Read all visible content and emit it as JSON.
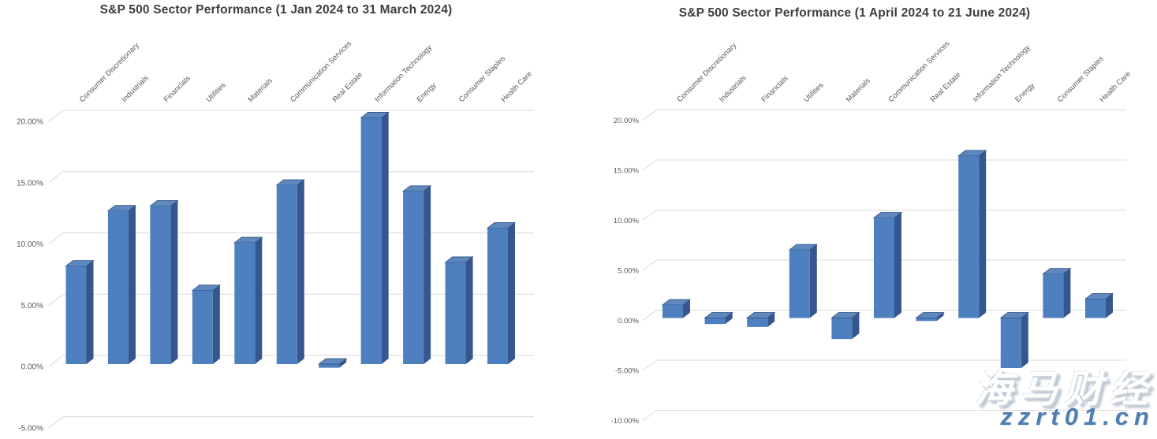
{
  "page": {
    "background": "#ffffff"
  },
  "colors": {
    "bar_front": "#4e7fbe",
    "bar_side": "#36568e",
    "bar_top": "#5e88be",
    "bar_top_edge": "#2f4f7e",
    "gridline": "#d9d9d9",
    "axis_text": "#595959",
    "title_text": "#3d3d3d"
  },
  "watermark": {
    "brand_text": "海马财经",
    "site_text": "zzrt01.cn",
    "brand_color": "#ffffff",
    "site_color": "#4e7eb0"
  },
  "chart_data": [
    {
      "type": "bar",
      "style": "3d-column",
      "title": "S&P 500 Sector Performance (1 Jan 2024 to 31 March 2024)",
      "categories": [
        "Consumer Discretionary",
        "Industrials",
        "Financials",
        "Utilities",
        "Materials",
        "Communication Services",
        "Real Estate",
        "Information Technology",
        "Energy",
        "Consumer Staples",
        "Health Care"
      ],
      "values": [
        8.0,
        12.5,
        12.9,
        6.0,
        9.9,
        14.6,
        -0.3,
        20.1,
        14.1,
        8.3,
        11.1
      ],
      "value_format": "percent",
      "xlabel": "",
      "ylabel": "",
      "ylim": [
        -5,
        20
      ],
      "ytick_values": [
        20,
        15,
        10,
        5,
        0,
        -5
      ],
      "ytick_labels": [
        "20.00%",
        "15.00%",
        "10.00%",
        "5.00%",
        "0.00%",
        "-5.00%"
      ],
      "grid": true,
      "legend": null
    },
    {
      "type": "bar",
      "style": "3d-column",
      "title": "S&P 500 Sector Performance (1 April 2024 to 21 June 2024)",
      "categories": [
        "Consumer Discretionary",
        "Industrials",
        "Financials",
        "Utilities",
        "Materials",
        "Communication Services",
        "Real Estate",
        "Information Technology",
        "Energy",
        "Consumer Staples",
        "Health Care"
      ],
      "values": [
        1.3,
        -0.6,
        -0.9,
        6.8,
        -2.1,
        10.0,
        -0.3,
        16.2,
        -5.0,
        4.4,
        1.9
      ],
      "value_format": "percent",
      "xlabel": "",
      "ylabel": "",
      "ylim": [
        -10,
        20
      ],
      "ytick_values": [
        20,
        15,
        10,
        5,
        0,
        -5,
        -10
      ],
      "ytick_labels": [
        "20.00%",
        "15.00%",
        "10.00%",
        "5.00%",
        "0.00%",
        "-5.00%",
        "-10.00%"
      ],
      "grid": true,
      "legend": null
    }
  ]
}
